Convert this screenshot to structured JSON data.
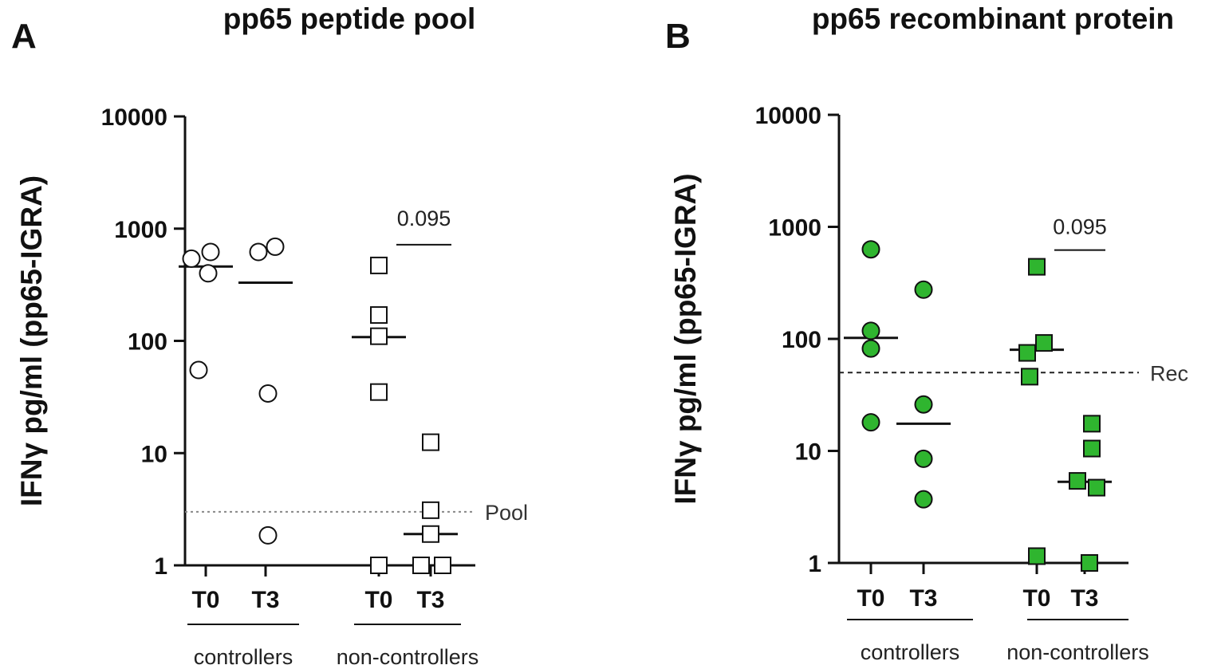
{
  "chart_data": [
    {
      "panel": "A",
      "type": "scatter",
      "title": "pp65 peptide pool",
      "ylabel": "IFNγ pg/ml (pp65-IGRA)",
      "yscale": "log",
      "ylim": [
        1,
        10000
      ],
      "yticks": [
        {
          "value": 1,
          "label": "1"
        },
        {
          "value": 10,
          "label": "10"
        },
        {
          "value": 100,
          "label": "100"
        },
        {
          "value": 1000,
          "label": "1000"
        },
        {
          "value": 10000,
          "label": "10000"
        }
      ],
      "categories": [
        "T0",
        "T3",
        "T0",
        "T3"
      ],
      "groups": [
        {
          "label": "controllers",
          "categories": [
            0,
            1
          ]
        },
        {
          "label": "non-controllers",
          "categories": [
            2,
            3
          ]
        }
      ],
      "marker": "circle/square open",
      "fill": "#ffffff",
      "series": [
        {
          "name": "controllers T0",
          "marker": "circle",
          "points": [
            {
              "dx": -0.3,
              "y": 540
            },
            {
              "dx": 0.05,
              "y": 400
            },
            {
              "dx": 0.1,
              "y": 620
            },
            {
              "dx": -0.15,
              "y": 55
            }
          ],
          "median": 460
        },
        {
          "name": "controllers T3",
          "marker": "circle",
          "points": [
            {
              "dx": -0.15,
              "y": 620
            },
            {
              "dx": 0.2,
              "y": 690
            },
            {
              "dx": 0.05,
              "y": 34
            },
            {
              "dx": 0.05,
              "y": 1.85
            }
          ],
          "median": 330
        },
        {
          "name": "non-controllers T0",
          "marker": "square",
          "points": [
            {
              "dx": 0.0,
              "y": 470
            },
            {
              "dx": 0.0,
              "y": 170
            },
            {
              "dx": 0.0,
              "y": 110
            },
            {
              "dx": 0.0,
              "y": 35
            },
            {
              "dx": 0.0,
              "y": 1.0
            }
          ],
          "median": 108
        },
        {
          "name": "non-controllers T3",
          "marker": "square",
          "points": [
            {
              "dx": 0.0,
              "y": 12.5
            },
            {
              "dx": 0.0,
              "y": 3.1
            },
            {
              "dx": 0.0,
              "y": 1.9
            },
            {
              "dx": -0.2,
              "y": 1.0
            },
            {
              "dx": 0.25,
              "y": 1.0
            }
          ],
          "median": 1.9
        }
      ],
      "threshold": {
        "value": 3.0,
        "label": "Pool",
        "style": "dotted"
      },
      "annotation": {
        "text": "0.095",
        "y": 720,
        "from": 2,
        "to": 3
      }
    },
    {
      "panel": "B",
      "type": "scatter",
      "title": "pp65 recombinant protein",
      "ylabel": "IFNγ pg/ml (pp65-IGRA)",
      "yscale": "log",
      "ylim": [
        1,
        10000
      ],
      "yticks": [
        {
          "value": 1,
          "label": "1"
        },
        {
          "value": 10,
          "label": "10"
        },
        {
          "value": 100,
          "label": "100"
        },
        {
          "value": 1000,
          "label": "1000"
        },
        {
          "value": 10000,
          "label": "10000"
        }
      ],
      "categories": [
        "T0",
        "T3",
        "T0",
        "T3"
      ],
      "groups": [
        {
          "label": "controllers",
          "categories": [
            0,
            1
          ]
        },
        {
          "label": "non-controllers",
          "categories": [
            2,
            3
          ]
        }
      ],
      "marker": "circle/square filled",
      "fill": "#2fb52f",
      "series": [
        {
          "name": "controllers T0",
          "marker": "circle",
          "points": [
            {
              "dx": 0.0,
              "y": 630
            },
            {
              "dx": 0.0,
              "y": 118
            },
            {
              "dx": 0.0,
              "y": 82
            },
            {
              "dx": 0.0,
              "y": 18
            }
          ],
          "median": 102
        },
        {
          "name": "controllers T3",
          "marker": "circle",
          "points": [
            {
              "dx": 0.0,
              "y": 275
            },
            {
              "dx": 0.0,
              "y": 26
            },
            {
              "dx": 0.0,
              "y": 8.5
            },
            {
              "dx": 0.0,
              "y": 3.7
            }
          ],
          "median": 17.5
        },
        {
          "name": "non-controllers T0",
          "marker": "square",
          "points": [
            {
              "dx": 0.0,
              "y": 440
            },
            {
              "dx": 0.15,
              "y": 92
            },
            {
              "dx": -0.2,
              "y": 75
            },
            {
              "dx": -0.15,
              "y": 46
            },
            {
              "dx": 0.0,
              "y": 1.15
            }
          ],
          "median": 80
        },
        {
          "name": "non-controllers T3",
          "marker": "square",
          "points": [
            {
              "dx": 0.15,
              "y": 17.5
            },
            {
              "dx": 0.15,
              "y": 10.5
            },
            {
              "dx": -0.15,
              "y": 5.4
            },
            {
              "dx": 0.25,
              "y": 4.7
            },
            {
              "dx": 0.1,
              "y": 1.0
            }
          ],
          "median": 5.3
        }
      ],
      "threshold": {
        "value": 50,
        "label": "Rec",
        "style": "dashed"
      },
      "annotation": {
        "text": "0.095",
        "y": 620,
        "from": 2,
        "to": 3
      }
    }
  ]
}
